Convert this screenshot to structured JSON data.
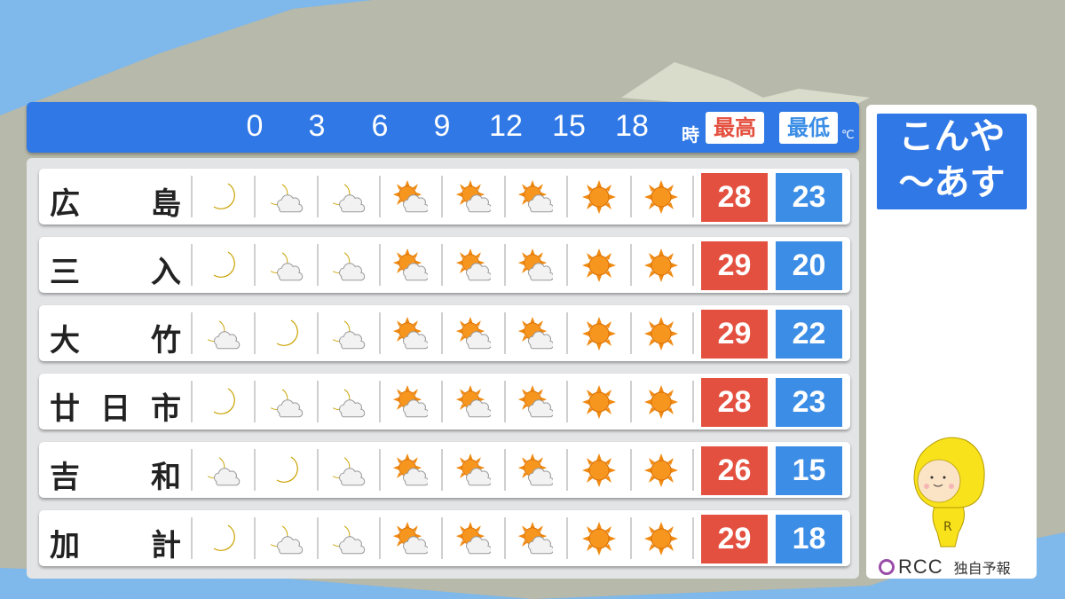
{
  "header": {
    "hours": [
      "0",
      "3",
      "6",
      "9",
      "12",
      "15",
      "18"
    ],
    "hour_unit": "時",
    "max_label": "最高",
    "min_label": "最低",
    "temp_unit": "℃"
  },
  "colors": {
    "header_blue": "#2f78e6",
    "max_red": "#e4503f",
    "min_blue": "#3b8de6",
    "sea": "#7fb8ea",
    "land": "#b7b9aa"
  },
  "rows": [
    {
      "name": [
        "広",
        "島"
      ],
      "icons": [
        "moon",
        "moon-cloud",
        "moon-cloud",
        "sun-cloud",
        "sun-cloud",
        "sun-cloud",
        "sun",
        "sun"
      ],
      "max": "28",
      "min": "23"
    },
    {
      "name": [
        "三",
        "入"
      ],
      "icons": [
        "moon",
        "moon-cloud",
        "moon-cloud",
        "sun-cloud",
        "sun-cloud",
        "sun-cloud",
        "sun",
        "sun"
      ],
      "max": "29",
      "min": "20"
    },
    {
      "name": [
        "大",
        "竹"
      ],
      "icons": [
        "moon-cloud",
        "moon",
        "moon-cloud",
        "sun-cloud",
        "sun-cloud",
        "sun-cloud",
        "sun",
        "sun"
      ],
      "max": "29",
      "min": "22"
    },
    {
      "name": [
        "廿",
        "日",
        "市"
      ],
      "icons": [
        "moon",
        "moon-cloud",
        "moon-cloud",
        "sun-cloud",
        "sun-cloud",
        "sun-cloud",
        "sun",
        "sun"
      ],
      "max": "28",
      "min": "23"
    },
    {
      "name": [
        "吉",
        "和"
      ],
      "icons": [
        "moon-cloud",
        "moon",
        "moon-cloud",
        "sun-cloud",
        "sun-cloud",
        "sun-cloud",
        "sun",
        "sun"
      ],
      "max": "26",
      "min": "15"
    },
    {
      "name": [
        "加",
        "計"
      ],
      "icons": [
        "moon",
        "moon-cloud",
        "moon-cloud",
        "sun-cloud",
        "sun-cloud",
        "sun-cloud",
        "sun",
        "sun"
      ],
      "max": "29",
      "min": "18"
    }
  ],
  "side": {
    "title_line1": "こんや",
    "title_line2": "〜あす",
    "brand": "RCC",
    "brand_note": "独自予報",
    "mascot": "lemon-mascot"
  }
}
